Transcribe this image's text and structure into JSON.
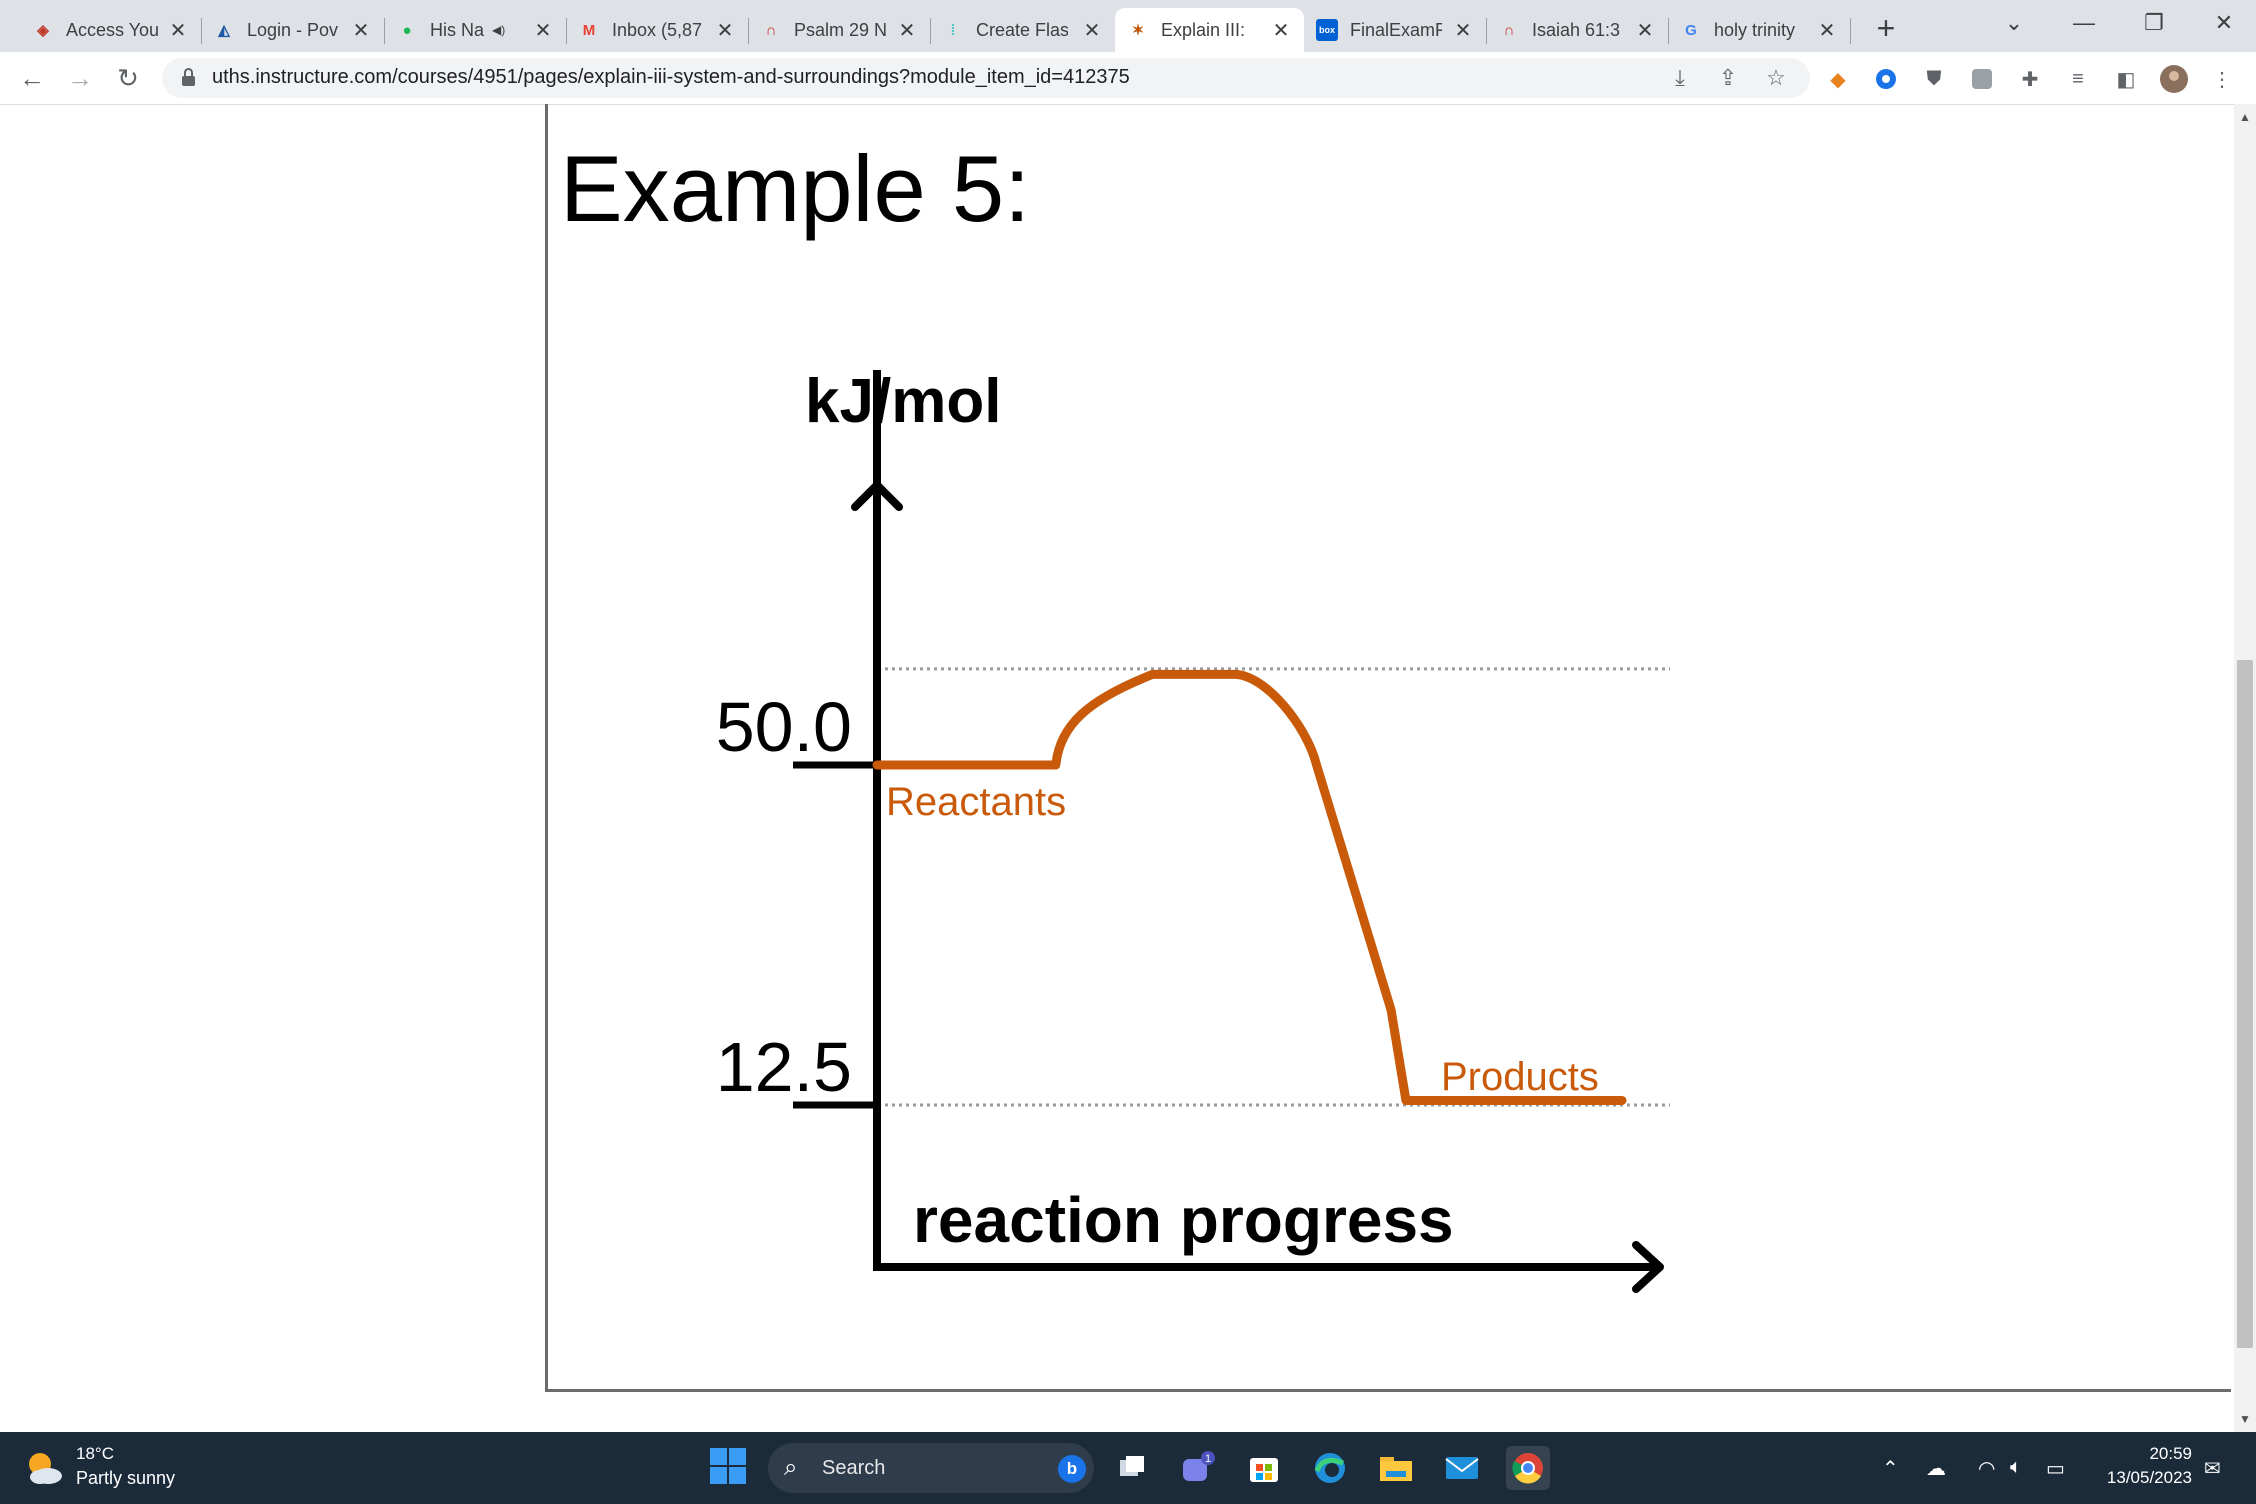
{
  "browser": {
    "tabs": [
      {
        "label": "Access You",
        "icon": "shield-crest-icon",
        "color": "#c0392b"
      },
      {
        "label": "Login - Pov",
        "icon": "powerschool-icon",
        "color": "#1f5aa6"
      },
      {
        "label": "His Na",
        "icon": "spotify-icon",
        "color": "#1db954",
        "audio": true
      },
      {
        "label": "Inbox (5,87",
        "icon": "gmail-icon",
        "color": "#ea4335"
      },
      {
        "label": "Psalm 29 N",
        "icon": "bible-app-icon",
        "color": "#c0392b"
      },
      {
        "label": "Create Flas",
        "icon": "quizlet-icon",
        "color": "#4ecdc4"
      },
      {
        "label": "Explain III:",
        "icon": "texas-icon",
        "color": "#bf5700"
      },
      {
        "label": "FinalExamF",
        "icon": "box-icon",
        "color": "#0061d5"
      },
      {
        "label": "Isaiah 61:3",
        "icon": "bible-app-icon",
        "color": "#c0392b"
      },
      {
        "label": "holy trinity",
        "icon": "google-icon",
        "color": "#4285f4"
      }
    ],
    "active_tab_index": 6,
    "url": "uths.instructure.com/courses/4951/pages/explain-iii-system-and-surroundings?module_item_id=412375"
  },
  "page": {
    "heading": "Example 5:"
  },
  "chart_data": {
    "type": "line",
    "title": "",
    "ylabel": "kJ/mol",
    "xlabel": "reaction progress",
    "y_ticks": [
      {
        "value": 50.0,
        "label": "50.0"
      },
      {
        "value": 12.5,
        "label": "12.5"
      }
    ],
    "peak_value": 60.6,
    "annotations": [
      "Reactants",
      "Products"
    ],
    "series": [
      {
        "color": "#c85a0a",
        "points": [
          {
            "x": 0.0,
            "y": 50.0
          },
          {
            "x": 0.24,
            "y": 50.0
          },
          {
            "x": 0.27,
            "y": 55.0
          },
          {
            "x": 0.37,
            "y": 60.0
          },
          {
            "x": 0.48,
            "y": 60.0
          },
          {
            "x": 0.59,
            "y": 50.0
          },
          {
            "x": 0.69,
            "y": 23.0
          },
          {
            "x": 0.71,
            "y": 13.0
          },
          {
            "x": 1.0,
            "y": 13.0
          }
        ]
      }
    ],
    "reference_lines": [
      60.6,
      12.5
    ]
  },
  "taskbar": {
    "weather_temp": "18°C",
    "weather_desc": "Partly sunny",
    "search_label": "Search",
    "clock_time": "20:59",
    "clock_date": "13/05/2023",
    "teams_badge": "1"
  }
}
